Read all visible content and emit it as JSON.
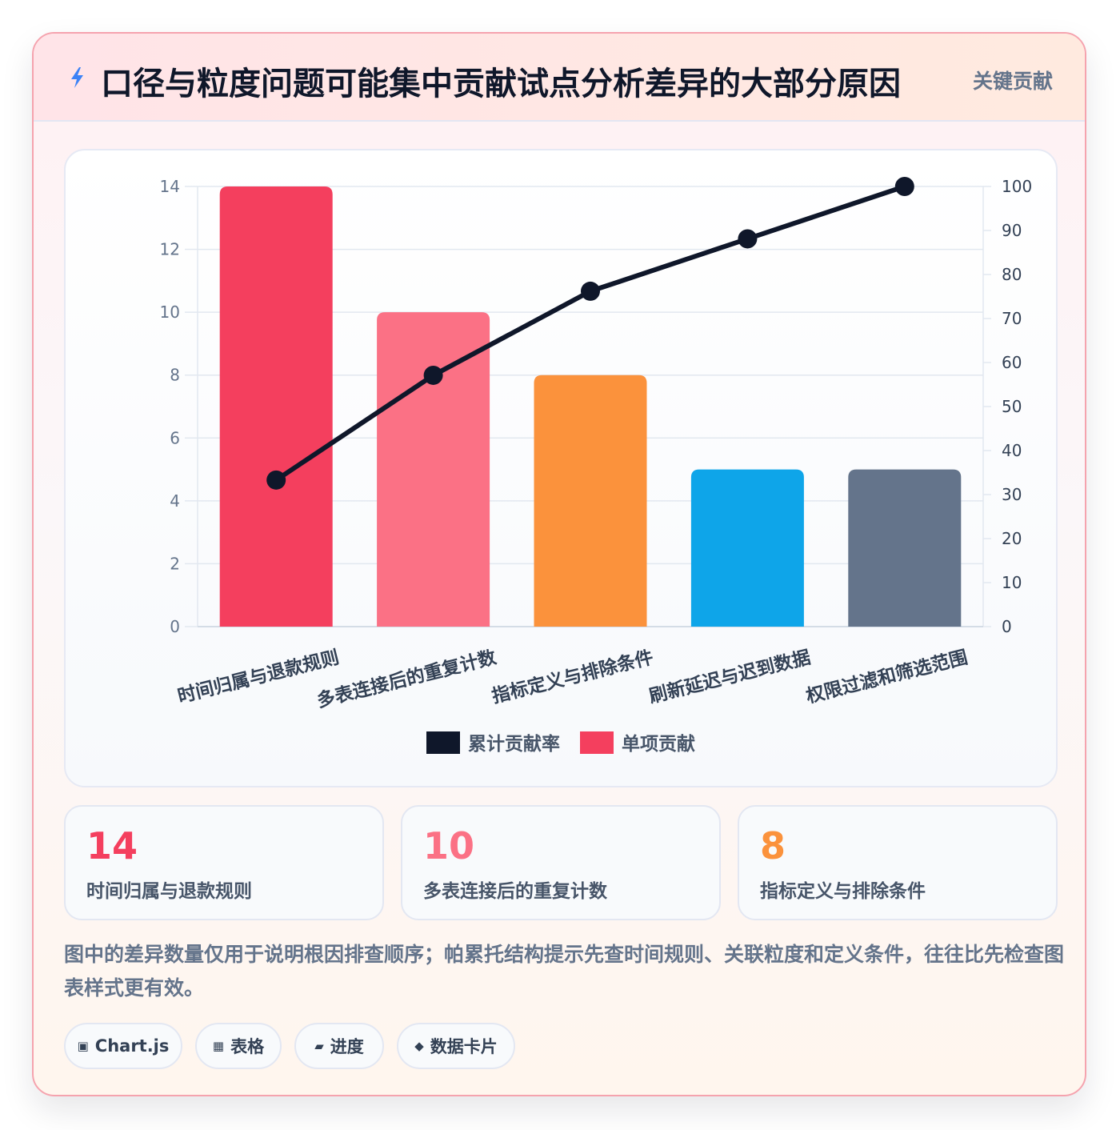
{
  "header": {
    "title": "口径与粒度问题可能集中贡献试点分析差异的大部分原因",
    "tag": "关键贡献",
    "icon": "lightning-icon"
  },
  "chart_data": {
    "type": "bar",
    "categories": [
      "时间归属与退款规则",
      "多表连接后的重复计数",
      "指标定义与排除条件",
      "刷新延迟与迟到数据",
      "权限过滤和筛选范围"
    ],
    "series": [
      {
        "name": "单项贡献",
        "type": "bar",
        "axis": "left",
        "values": [
          14,
          10,
          8,
          5,
          5
        ],
        "colors": [
          "#f43f5e",
          "#fb7185",
          "#fb923c",
          "#0ea5e9",
          "#64748b"
        ]
      },
      {
        "name": "累计贡献率",
        "type": "line",
        "axis": "right",
        "values": [
          33.3,
          57.1,
          76.2,
          88.1,
          100
        ],
        "color": "#0f172a"
      }
    ],
    "legend": [
      {
        "label": "累计贡献率",
        "color": "#0f172a"
      },
      {
        "label": "单项贡献",
        "color": "#f43f5e"
      }
    ],
    "legend_position": "bottom",
    "y_left": {
      "min": 0,
      "max": 14,
      "ticks": [
        "0",
        "2",
        "4",
        "6",
        "8",
        "10",
        "12",
        "14"
      ]
    },
    "y_right": {
      "min": 0,
      "max": 100,
      "ticks": [
        "0",
        "10",
        "20",
        "30",
        "40",
        "50",
        "60",
        "70",
        "80",
        "90",
        "100"
      ]
    },
    "grid": true
  },
  "stats": [
    {
      "value": "14",
      "label": "时间归属与退款规则",
      "color": "#f43f5e"
    },
    {
      "value": "10",
      "label": "多表连接后的重复计数",
      "color": "#fb7185"
    },
    {
      "value": "8",
      "label": "指标定义与排除条件",
      "color": "#fb923c"
    }
  ],
  "note": "图中的差异数量仅用于说明根因排查顺序；帕累托结构提示先查时间规则、关联粒度和定义条件，往往比先检查图表样式更有效。",
  "chips": [
    {
      "icon": "▣",
      "icon_name": "chart-icon",
      "label": "Chart.js"
    },
    {
      "icon": "▦",
      "icon_name": "table-icon",
      "label": "表格"
    },
    {
      "icon": "▰",
      "icon_name": "progress-icon",
      "label": "进度"
    },
    {
      "icon": "◆",
      "icon_name": "card-icon",
      "label": "数据卡片"
    }
  ]
}
